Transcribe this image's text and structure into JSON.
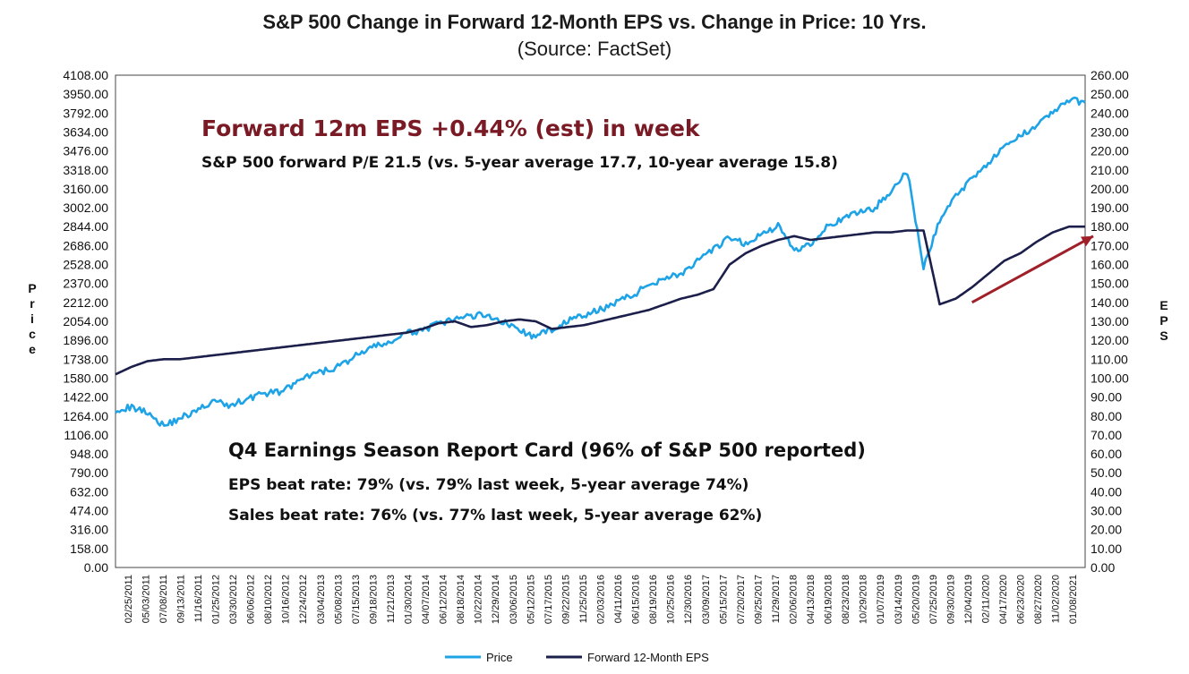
{
  "chart_data": {
    "type": "line",
    "title": "S&P 500 Change in Forward 12-Month EPS vs. Change in Price: 10 Yrs.",
    "subtitle": "(Source: FactSet)",
    "ylabel_left": "Price",
    "ylabel_right": "EPS",
    "ylim_left": [
      0,
      4108
    ],
    "ylim_right": [
      0,
      260
    ],
    "yticks_left": [
      "4108.00",
      "3950.00",
      "3792.00",
      "3634.00",
      "3476.00",
      "3318.00",
      "3160.00",
      "3002.00",
      "2844.00",
      "2686.00",
      "2528.00",
      "2370.00",
      "2212.00",
      "2054.00",
      "1896.00",
      "1738.00",
      "1580.00",
      "1422.00",
      "1264.00",
      "1106.00",
      "948.00",
      "790.00",
      "632.00",
      "474.00",
      "316.00",
      "158.00",
      "0.00"
    ],
    "yticks_right": [
      "260.00",
      "250.00",
      "240.00",
      "230.00",
      "220.00",
      "210.00",
      "200.00",
      "190.00",
      "180.00",
      "170.00",
      "160.00",
      "150.00",
      "140.00",
      "130.00",
      "120.00",
      "110.00",
      "100.00",
      "90.00",
      "80.00",
      "70.00",
      "60.00",
      "50.00",
      "40.00",
      "30.00",
      "20.00",
      "10.00",
      "0.00"
    ],
    "xticks": [
      "02/25/2011",
      "05/03/2011",
      "07/08/2011",
      "09/13/2011",
      "11/16/2011",
      "01/25/2012",
      "03/30/2012",
      "06/06/2012",
      "08/10/2012",
      "10/16/2012",
      "12/24/2012",
      "03/04/2013",
      "05/08/2013",
      "07/15/2013",
      "09/18/2013",
      "11/21/2013",
      "01/30/2014",
      "04/07/2014",
      "06/12/2014",
      "08/18/2014",
      "10/22/2014",
      "12/29/2014",
      "03/06/2015",
      "05/12/2015",
      "07/17/2015",
      "09/22/2015",
      "11/25/2015",
      "02/03/2016",
      "04/11/2016",
      "06/15/2016",
      "08/19/2016",
      "10/25/2016",
      "12/30/2016",
      "03/09/2017",
      "05/15/2017",
      "07/20/2017",
      "09/25/2017",
      "11/29/2017",
      "02/06/2018",
      "04/13/2018",
      "06/19/2018",
      "08/23/2018",
      "10/29/2018",
      "01/07/2019",
      "03/14/2019",
      "05/20/2019",
      "07/25/2019",
      "09/30/2019",
      "12/04/2019",
      "02/11/2020",
      "04/17/2020",
      "06/23/2020",
      "08/27/2020",
      "11/02/2020",
      "01/08/2021"
    ],
    "series": [
      {
        "name": "Price",
        "axis": "left",
        "color": "#1ea3e6",
        "x": [
          0,
          2,
          4,
          6,
          8,
          10,
          12,
          14,
          16,
          18,
          20,
          22,
          24,
          26,
          28,
          30,
          32,
          34,
          36,
          38,
          40,
          42,
          44,
          46,
          48,
          50,
          52,
          54,
          56,
          58,
          60,
          62,
          64,
          66,
          68,
          70,
          72,
          74,
          76,
          78,
          80,
          82,
          84,
          86,
          88,
          90,
          92,
          94,
          96,
          98,
          100,
          102,
          104,
          106,
          108,
          110,
          112,
          114,
          116,
          118,
          120
        ],
        "y": [
          1320,
          1335,
          1300,
          1180,
          1250,
          1300,
          1390,
          1350,
          1400,
          1450,
          1460,
          1520,
          1600,
          1640,
          1690,
          1780,
          1840,
          1880,
          1950,
          1985,
          2030,
          2070,
          2100,
          2110,
          2050,
          1980,
          1920,
          1990,
          2060,
          2100,
          2150,
          2220,
          2270,
          2360,
          2420,
          2450,
          2550,
          2650,
          2750,
          2700,
          2780,
          2850,
          2650,
          2700,
          2850,
          2900,
          2970,
          3000,
          3150,
          3300,
          2500,
          2900,
          3100,
          3250,
          3380,
          3500,
          3600,
          3700,
          3800,
          3900,
          3880
        ]
      },
      {
        "name": "Forward 12-Month EPS",
        "axis": "right",
        "color": "#1b1f4a",
        "x": [
          0,
          2,
          4,
          6,
          8,
          10,
          12,
          14,
          16,
          18,
          20,
          22,
          24,
          26,
          28,
          30,
          32,
          34,
          36,
          38,
          40,
          42,
          44,
          46,
          48,
          50,
          52,
          54,
          56,
          58,
          60,
          62,
          64,
          66,
          68,
          70,
          72,
          74,
          76,
          78,
          80,
          82,
          84,
          86,
          88,
          90,
          92,
          94,
          96,
          98,
          100,
          102,
          104,
          106,
          108,
          110,
          112,
          114,
          116,
          118,
          120
        ],
        "y": [
          102,
          106,
          109,
          110,
          110,
          111,
          112,
          113,
          114,
          115,
          116,
          117,
          118,
          119,
          120,
          121,
          122,
          123,
          124,
          126,
          129,
          130,
          127,
          128,
          130,
          131,
          130,
          126,
          127,
          128,
          130,
          132,
          134,
          136,
          139,
          142,
          144,
          147,
          160,
          166,
          170,
          173,
          175,
          173,
          174,
          175,
          176,
          177,
          177,
          178,
          178,
          139,
          142,
          148,
          155,
          162,
          166,
          172,
          177,
          180,
          180
        ]
      }
    ],
    "annotations": {
      "eps_headline": "Forward 12m EPS +0.44% (est) in week",
      "pe_line": "S&P 500 forward P/E 21.5 (vs. 5-year average 17.7, 10-year average 15.8)",
      "report_title": "Q4 Earnings Season Report Card (96% of S&P 500 reported)",
      "eps_beat": "EPS beat rate: 79% (vs. 79% last week, 5-year average 74%)",
      "sales_beat": "Sales beat rate: 76% (vs. 77% last week, 5-year average 62%)"
    },
    "arrow": {
      "from": [
        106,
        140
      ],
      "to": [
        121,
        175
      ],
      "color": "#a0202a"
    },
    "legend": [
      "Price",
      "Forward 12-Month EPS"
    ],
    "grid": false
  }
}
